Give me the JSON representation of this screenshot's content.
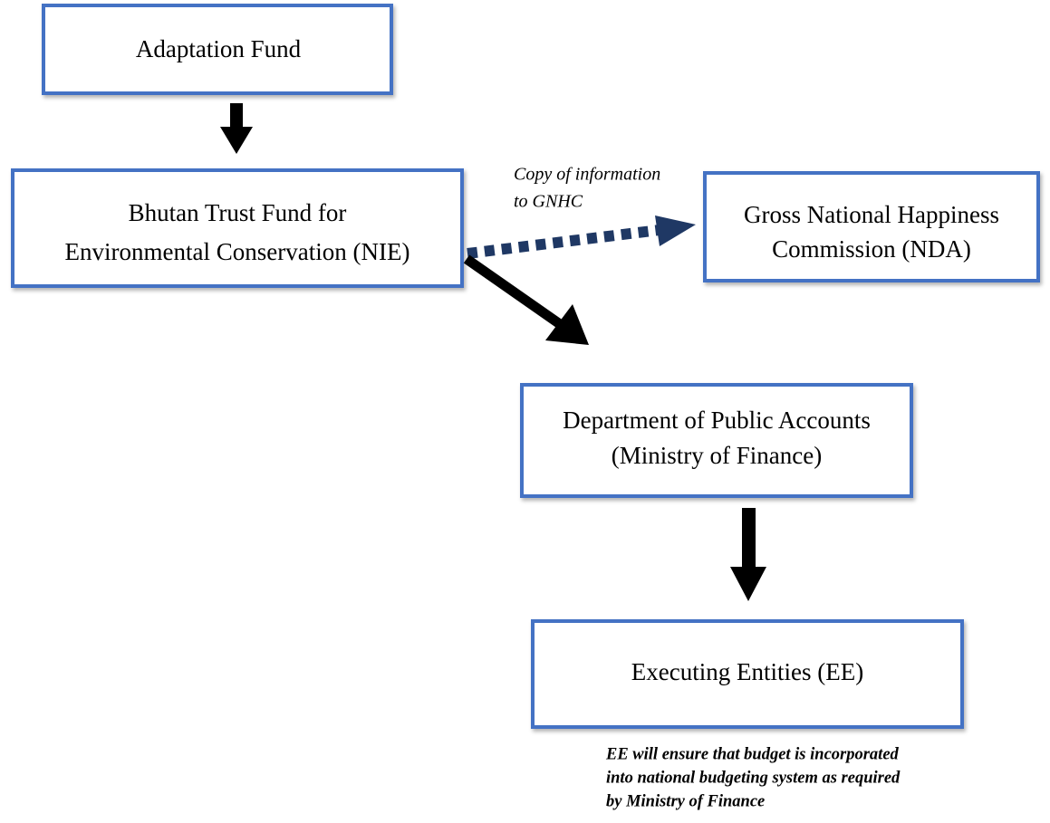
{
  "nodes": [
    {
      "lines": [
        "Adaptation Fund"
      ]
    },
    {
      "lines": [
        "Bhutan Trust Fund for",
        "Environmental Conservation (NIE)"
      ]
    },
    {
      "lines": [
        "Gross National Happiness",
        "Commission (NDA)"
      ]
    },
    {
      "lines": [
        "Department of Public Accounts",
        "(Ministry of Finance)"
      ]
    },
    {
      "lines": [
        "Executing Entities (EE)"
      ]
    }
  ],
  "annotations": [
    {
      "lines": [
        "Copy of information",
        "to GNHC"
      ]
    },
    {
      "lines": [
        "EE will ensure that budget is incorporated",
        "into national budgeting system as required",
        "by Ministry of Finance"
      ]
    }
  ]
}
